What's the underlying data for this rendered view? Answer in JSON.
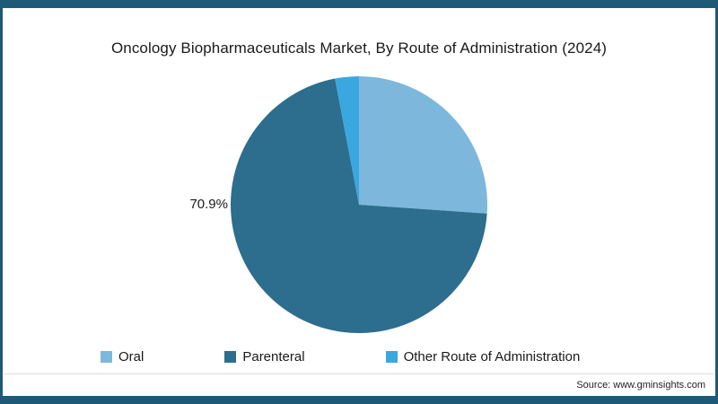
{
  "frame": {
    "color": "#1e5a78"
  },
  "chart_data": {
    "type": "pie",
    "title": "Oncology Biopharmaceuticals Market, By Route of Administration (2024)",
    "direction": "clockwise",
    "start_angle_deg": 0,
    "legend_position": "bottom",
    "slices": [
      {
        "label": "Oral",
        "value": 26.1,
        "color": "#7db8dc"
      },
      {
        "label": "Parenteral",
        "value": 70.9,
        "color": "#2d6d8e",
        "value_label": "70.9%"
      },
      {
        "label": "Other Route of Administration",
        "value": 3.0,
        "color": "#3aa7e0"
      }
    ]
  },
  "source": {
    "text": "Source: www.gminsights.com"
  }
}
